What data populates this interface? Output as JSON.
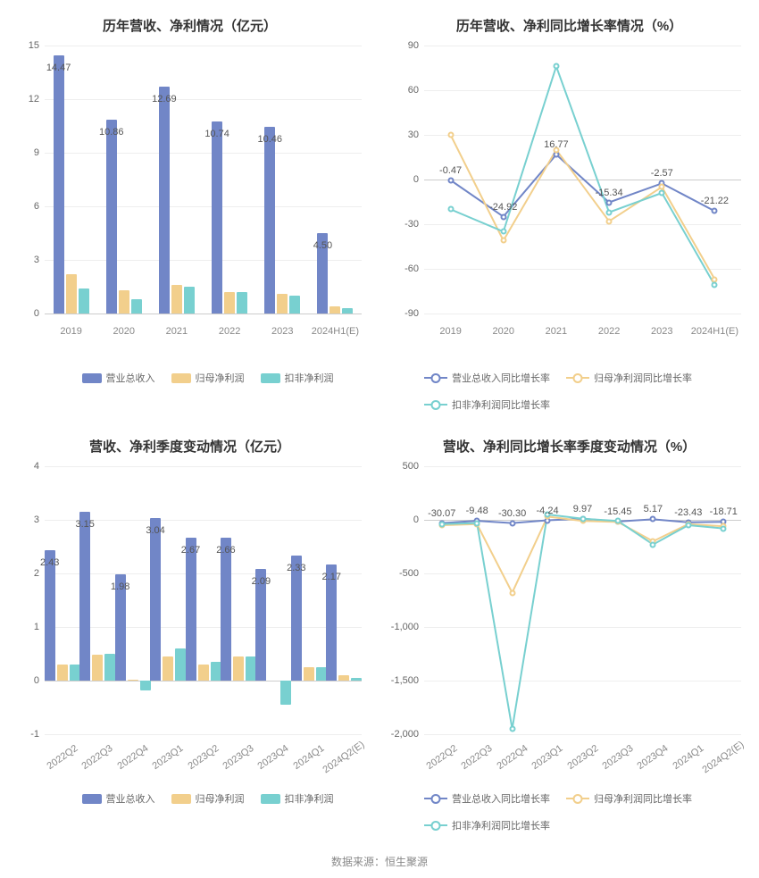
{
  "footer": "数据来源：恒生聚源",
  "colors": {
    "series1": "#7186c7",
    "series2": "#f2cf8c",
    "series3": "#78d0d0",
    "grid": "#eeeeee",
    "axis": "#cccccc",
    "text": "#666666",
    "titleColor": "#333333"
  },
  "panels": [
    {
      "id": "p1",
      "title": "历年营收、净利情况（亿元）",
      "type": "bar",
      "ylim": [
        0,
        15
      ],
      "ytick_step": 3,
      "x_rotate": false,
      "categories": [
        "2019",
        "2020",
        "2021",
        "2022",
        "2023",
        "2024H1(E)"
      ],
      "series": [
        {
          "name": "营业总收入",
          "color": "#7186c7",
          "values": [
            14.47,
            10.86,
            12.69,
            10.74,
            10.46,
            4.5
          ]
        },
        {
          "name": "归母净利润",
          "color": "#f2cf8c",
          "values": [
            2.2,
            1.3,
            1.6,
            1.2,
            1.1,
            0.4
          ]
        },
        {
          "name": "扣非净利润",
          "color": "#78d0d0",
          "values": [
            1.4,
            0.8,
            1.5,
            1.2,
            1.0,
            0.3
          ]
        }
      ],
      "labelSeries": 0,
      "labels": [
        "14.47",
        "10.86",
        "12.69",
        "10.74",
        "10.46",
        "4.50"
      ],
      "legend_align": "center"
    },
    {
      "id": "p2",
      "title": "历年营收、净利同比增长率情况（%）",
      "type": "line",
      "ylim": [
        -90,
        90
      ],
      "ytick_step": 30,
      "x_rotate": false,
      "categories": [
        "2019",
        "2020",
        "2021",
        "2022",
        "2023",
        "2024H1(E)"
      ],
      "series": [
        {
          "name": "营业总收入同比增长率",
          "color": "#7186c7",
          "values": [
            -0.47,
            -24.92,
            16.77,
            -15.34,
            -2.57,
            -21.22
          ]
        },
        {
          "name": "归母净利润同比增长率",
          "color": "#f2cf8c",
          "values": [
            30,
            -41,
            20,
            -28,
            -5,
            -67
          ]
        },
        {
          "name": "扣非净利润同比增长率",
          "color": "#78d0d0",
          "values": [
            -20,
            -35,
            76,
            -22,
            -9,
            -71
          ]
        }
      ],
      "labelSeries": 0,
      "labels": [
        "-0.47",
        "-24.92",
        "16.77",
        "-15.34",
        "-2.57",
        "-21.22"
      ],
      "legend_align": "left"
    },
    {
      "id": "p3",
      "title": "营收、净利季度变动情况（亿元）",
      "type": "bar",
      "ylim": [
        -1,
        4
      ],
      "ytick_step": 1,
      "x_rotate": true,
      "categories": [
        "2022Q2",
        "2022Q3",
        "2022Q4",
        "2023Q1",
        "2023Q2",
        "2023Q3",
        "2023Q4",
        "2024Q1",
        "2024Q2(E)"
      ],
      "series": [
        {
          "name": "营业总收入",
          "color": "#7186c7",
          "values": [
            2.43,
            3.15,
            1.98,
            3.04,
            2.67,
            2.66,
            2.09,
            2.33,
            2.17
          ]
        },
        {
          "name": "归母净利润",
          "color": "#f2cf8c",
          "values": [
            0.3,
            0.48,
            0.02,
            0.45,
            0.3,
            0.45,
            0.0,
            0.25,
            0.1
          ]
        },
        {
          "name": "扣非净利润",
          "color": "#78d0d0",
          "values": [
            0.3,
            0.5,
            -0.18,
            0.6,
            0.35,
            0.45,
            -0.45,
            0.25,
            0.05
          ]
        }
      ],
      "labelSeries": 0,
      "labels": [
        "2.43",
        "3.15",
        "1.98",
        "3.04",
        "2.67",
        "2.66",
        "2.09",
        "2.33",
        "2.17"
      ],
      "legend_align": "center"
    },
    {
      "id": "p4",
      "title": "营收、净利同比增长率季度变动情况（%）",
      "type": "line",
      "ylim": [
        -2000,
        500
      ],
      "ytick_step": 500,
      "x_rotate": true,
      "categories": [
        "2022Q2",
        "2022Q3",
        "2022Q4",
        "2023Q1",
        "2023Q2",
        "2023Q3",
        "2023Q4",
        "2024Q1",
        "2024Q2(E)"
      ],
      "series": [
        {
          "name": "营业总收入同比增长率",
          "color": "#7186c7",
          "values": [
            -30.07,
            -9.48,
            -30.3,
            -4.24,
            9.97,
            -15.45,
            5.17,
            -23.43,
            -18.71
          ]
        },
        {
          "name": "归母净利润同比增长率",
          "color": "#f2cf8c",
          "values": [
            -50,
            -40,
            -680,
            30,
            -10,
            -20,
            -200,
            -40,
            -60
          ]
        },
        {
          "name": "扣非净利润同比增长率",
          "color": "#78d0d0",
          "values": [
            -40,
            -30,
            -1950,
            50,
            10,
            -10,
            -230,
            -50,
            -80
          ]
        }
      ],
      "labelSeries": 0,
      "labels": [
        "-30.07",
        "-9.48",
        "-30.30",
        "-4.24",
        "9.97",
        "-15.45",
        "5.17",
        "-23.43",
        "-18.71"
      ],
      "legend_align": "left"
    }
  ]
}
